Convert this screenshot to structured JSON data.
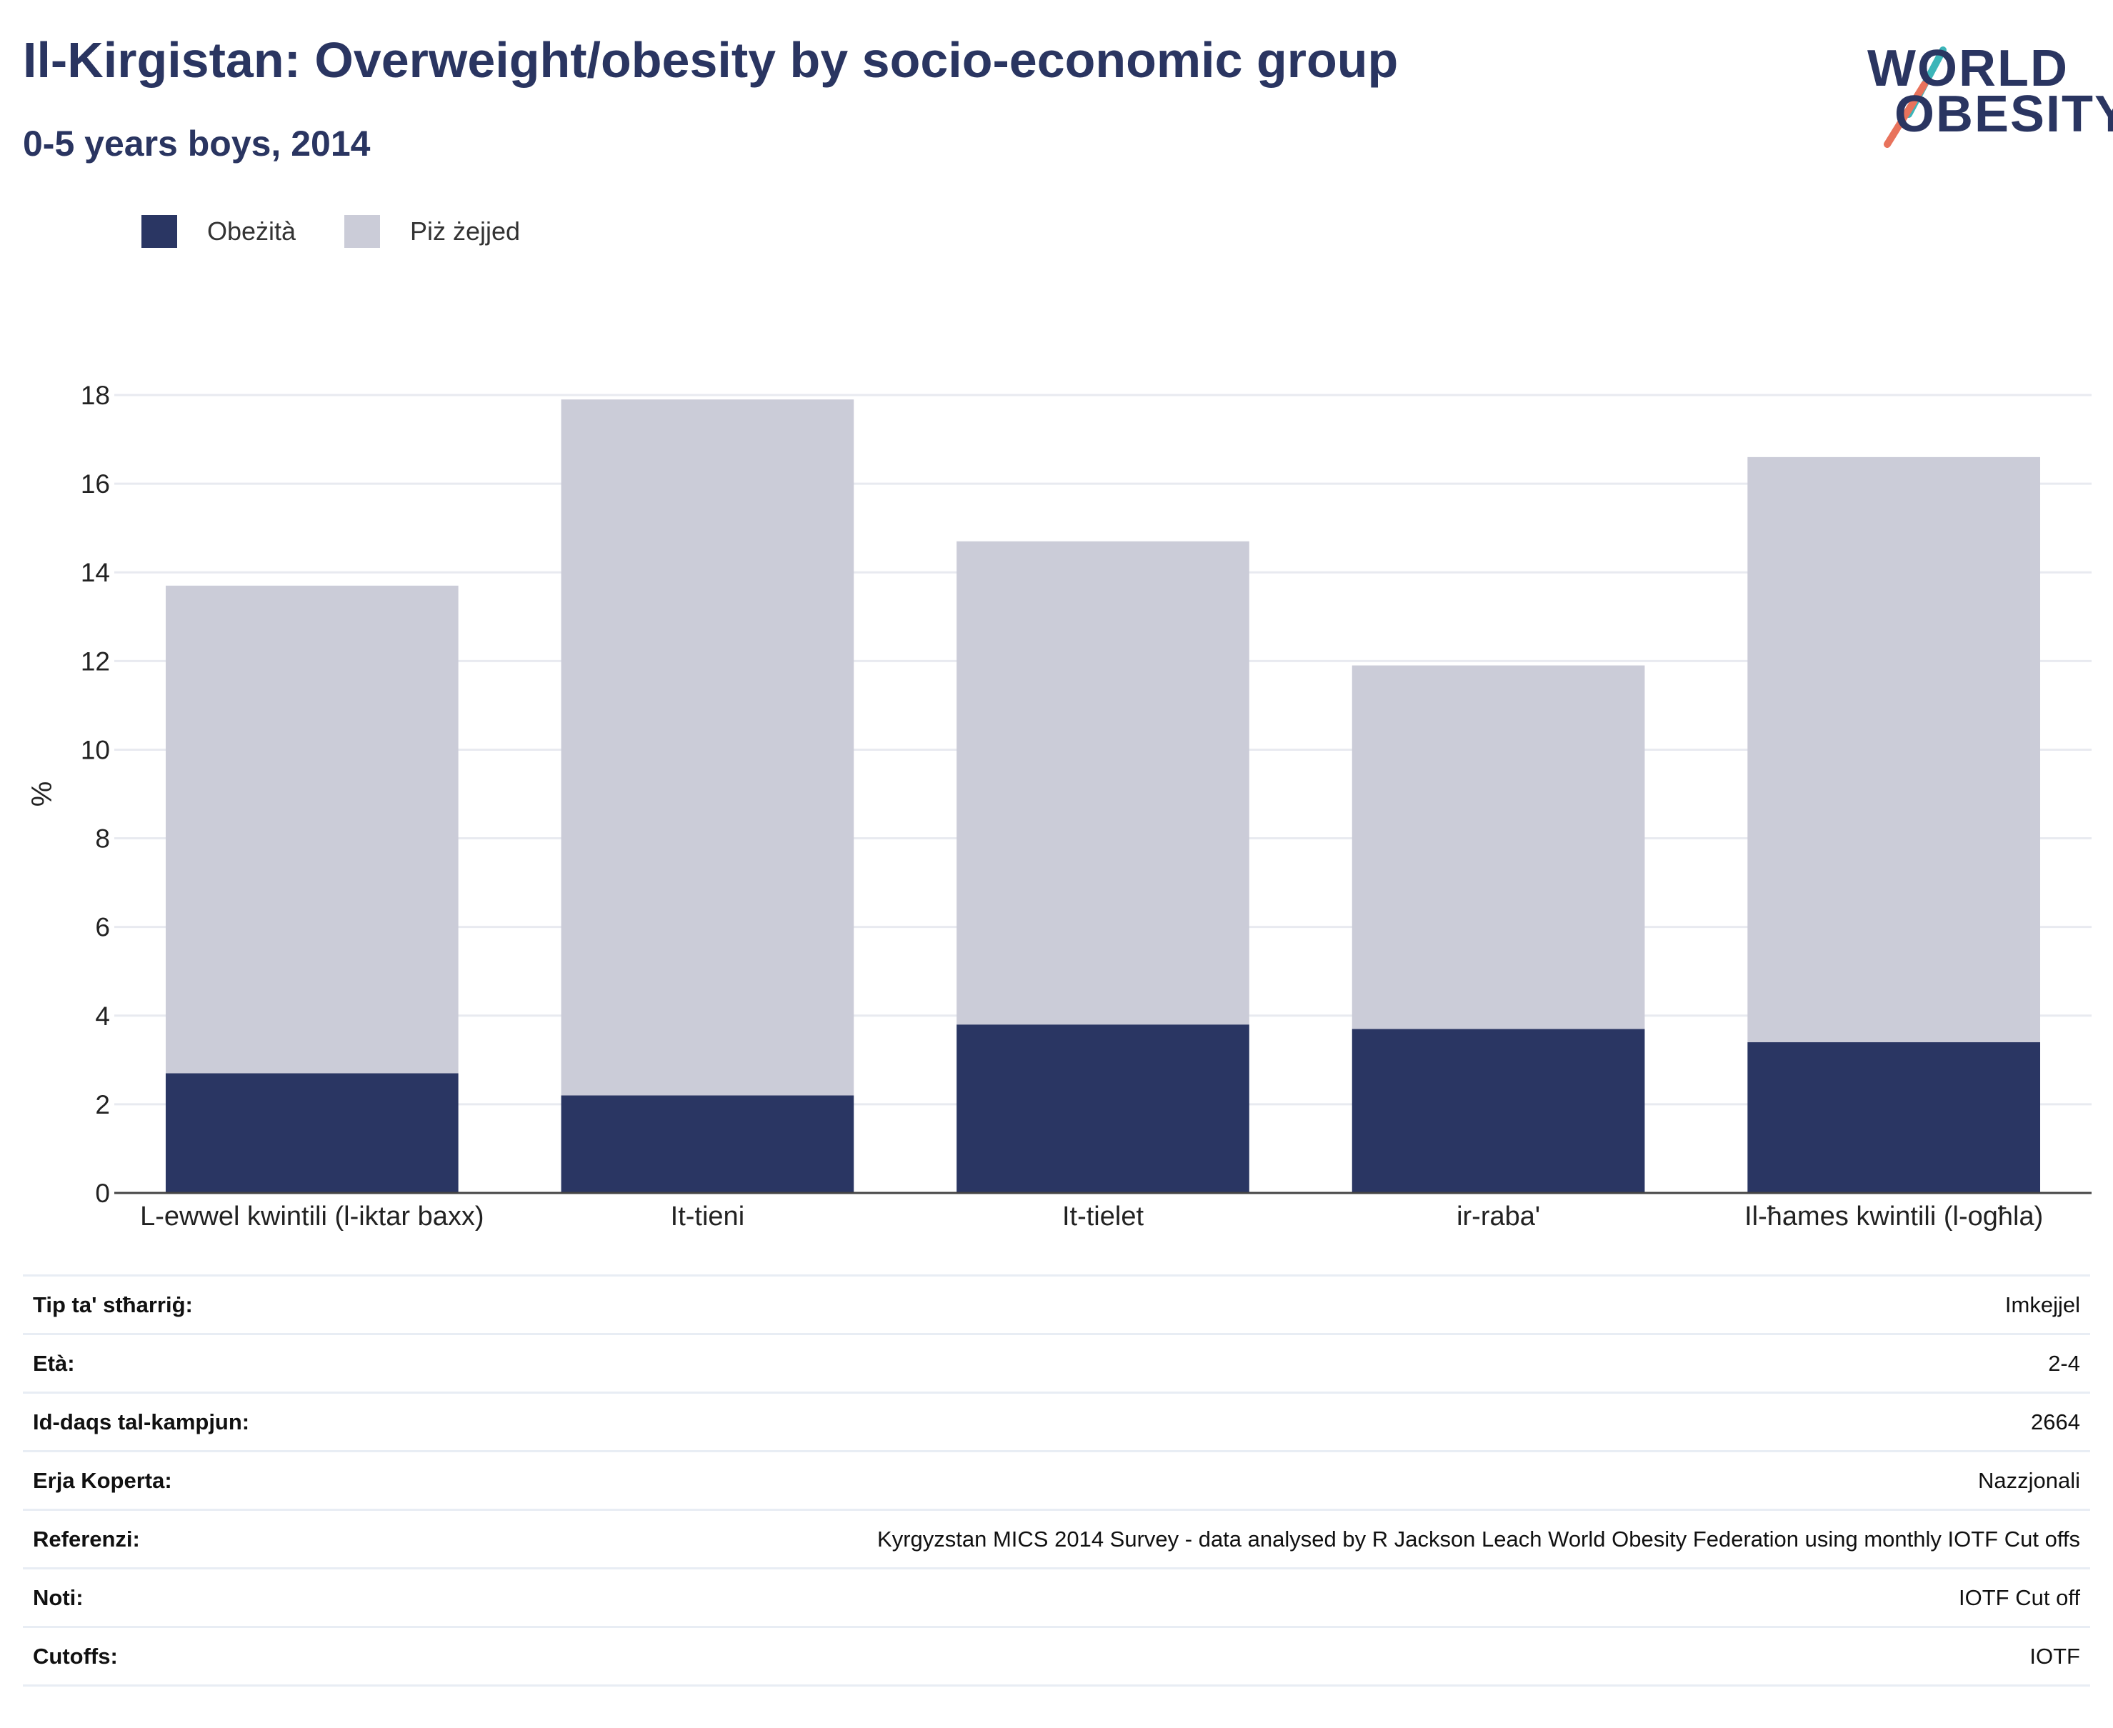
{
  "header": {
    "title": "Il-Kirgistan: Overweight/obesity by socio-economic group",
    "subtitle": "0-5 years boys, 2014"
  },
  "logo": {
    "line1": "WORLD",
    "line2": "OBESITY",
    "accent_teal": "#3cb5b9",
    "accent_coral": "#e8735c"
  },
  "legend": [
    {
      "label": "Obeżità",
      "color": "#2a3663"
    },
    {
      "label": "Piż żejjed",
      "color": "#cbccd8"
    }
  ],
  "chart_data": {
    "type": "bar",
    "stacked": true,
    "categories": [
      "L-ewwel kwintili (l-iktar baxx)",
      "It-tieni",
      "It-tielet",
      "ir-raba'",
      "Il-ħames kwintili (l-ogħla)"
    ],
    "series": [
      {
        "name": "Obeżità",
        "values": [
          2.7,
          2.2,
          3.8,
          3.7,
          3.4
        ],
        "color": "#2a3663"
      },
      {
        "name": "Piż żejjed",
        "values": [
          11.0,
          15.7,
          10.9,
          8.2,
          13.2
        ],
        "color": "#cbccd8"
      }
    ],
    "ylabel": "%",
    "ylim": [
      0,
      18
    ],
    "yticks": [
      0,
      2,
      4,
      6,
      8,
      10,
      12,
      14,
      16,
      18
    ],
    "grid": true,
    "legend_position": "top-left"
  },
  "details": [
    {
      "key": "Tip ta' stħarriġ:",
      "value": "Imkejjel"
    },
    {
      "key": "Età:",
      "value": "2-4"
    },
    {
      "key": "Id-daqs tal-kampjun:",
      "value": "2664"
    },
    {
      "key": "Erja Koperta:",
      "value": "Nazzjonali"
    },
    {
      "key": "Referenzi:",
      "value": "Kyrgyzstan MICS 2014 Survey - data analysed by R Jackson Leach World Obesity Federation using monthly IOTF Cut offs"
    },
    {
      "key": "Noti:",
      "value": "IOTF Cut off"
    },
    {
      "key": "Cutoffs:",
      "value": "IOTF"
    }
  ]
}
